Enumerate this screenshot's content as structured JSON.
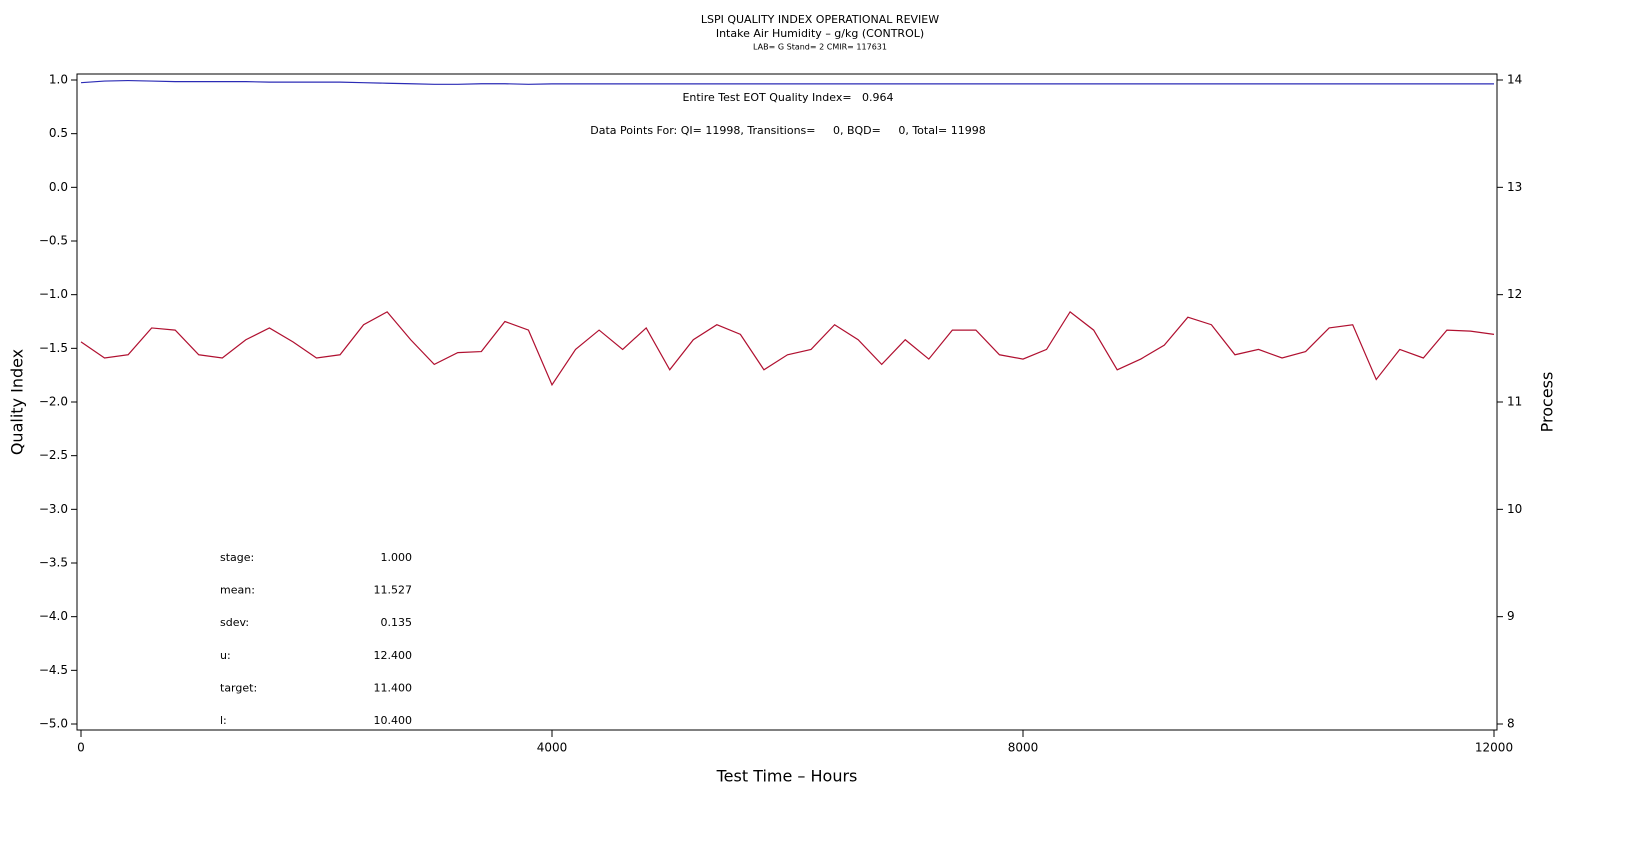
{
  "chart_data": {
    "type": "line",
    "title": "LSPI QUALITY INDEX OPERATIONAL REVIEW",
    "subtitle": "Intake Air Humidity – g/kg (CONTROL)",
    "caption": "LAB= G Stand= 2 CMIR= 117631",
    "xlabel": "Test Time – Hours",
    "ylabel": "Quality Index",
    "y2label": "Process",
    "annotations": [
      "Entire Test EOT Quality Index=   0.964",
      "Data Points For: QI= 11998, Transitions=     0, BQD=     0, Total= 11998"
    ],
    "stats": [
      {
        "label": "stage:",
        "value": "1.000"
      },
      {
        "label": "mean:",
        "value": "11.527"
      },
      {
        "label": "sdev:",
        "value": "0.135"
      },
      {
        "label": "u:",
        "value": "12.400"
      },
      {
        "label": "target:",
        "value": "11.400"
      },
      {
        "label": "l:",
        "value": "10.400"
      }
    ],
    "xlim": [
      0,
      12000
    ],
    "xticks": [
      0,
      4000,
      8000,
      12000
    ],
    "ylim": [
      -5,
      1
    ],
    "yticks": [
      {
        "value": -5,
        "label": "−5.0"
      },
      {
        "value": -4.5,
        "label": "−4.5"
      },
      {
        "value": -4,
        "label": "−4.0"
      },
      {
        "value": -3.5,
        "label": "−3.5"
      },
      {
        "value": -3,
        "label": "−3.0"
      },
      {
        "value": -2.5,
        "label": "−2.5"
      },
      {
        "value": -2,
        "label": "−2.0"
      },
      {
        "value": -1.5,
        "label": "−1.5"
      },
      {
        "value": -1,
        "label": "−1.0"
      },
      {
        "value": -0.5,
        "label": "−0.5"
      },
      {
        "value": 0,
        "label": "0.0"
      },
      0.5,
      {
        "value": 1,
        "label": "1.0"
      }
    ],
    "y2lim": [
      8,
      14
    ],
    "y2ticks": [
      8,
      9,
      10,
      11,
      12,
      13,
      14
    ],
    "x": [
      0,
      200,
      400,
      600,
      800,
      1000,
      1200,
      1400,
      1600,
      1800,
      2000,
      2200,
      2400,
      2600,
      2800,
      3000,
      3200,
      3400,
      3600,
      3800,
      4000,
      4200,
      4400,
      4600,
      4800,
      5000,
      5200,
      5400,
      5600,
      5800,
      6000,
      6200,
      6400,
      6600,
      6800,
      7000,
      7200,
      7400,
      7600,
      7800,
      8000,
      8200,
      8400,
      8600,
      8800,
      9000,
      9200,
      9400,
      9600,
      9800,
      10000,
      10200,
      10400,
      10600,
      10800,
      11000,
      11200,
      11400,
      11600,
      11800,
      12000
    ],
    "series": [
      {
        "color": "#2b2bb5",
        "axis": "y",
        "values": [
          0.975,
          0.99,
          0.995,
          0.99,
          0.985,
          0.985,
          0.985,
          0.985,
          0.98,
          0.98,
          0.98,
          0.98,
          0.975,
          0.97,
          0.965,
          0.96,
          0.96,
          0.965,
          0.965,
          0.96,
          0.964,
          0.964,
          0.964,
          0.964,
          0.964,
          0.964,
          0.964,
          0.964,
          0.964,
          0.964,
          0.964,
          0.964,
          0.964,
          0.964,
          0.964,
          0.964,
          0.964,
          0.964,
          0.964,
          0.964,
          0.964,
          0.964,
          0.964,
          0.964,
          0.964,
          0.964,
          0.964,
          0.964,
          0.964,
          0.964,
          0.964,
          0.964,
          0.964,
          0.964,
          0.964,
          0.964,
          0.964,
          0.964,
          0.964,
          0.964,
          0.964
        ]
      },
      {
        "color": "#b01030",
        "axis": "y2",
        "values": [
          11.56,
          11.41,
          11.44,
          11.69,
          11.67,
          11.44,
          11.41,
          11.58,
          11.69,
          11.56,
          11.41,
          11.44,
          11.72,
          11.84,
          11.58,
          11.35,
          11.46,
          11.47,
          11.75,
          11.67,
          11.16,
          11.49,
          11.67,
          11.49,
          11.69,
          11.3,
          11.58,
          11.72,
          11.63,
          11.3,
          11.44,
          11.49,
          11.72,
          11.58,
          11.35,
          11.58,
          11.4,
          11.67,
          11.67,
          11.44,
          11.4,
          11.49,
          11.84,
          11.67,
          11.3,
          11.4,
          11.53,
          11.79,
          11.72,
          11.44,
          11.49,
          11.41,
          11.47,
          11.69,
          11.72,
          11.21,
          11.49,
          11.41,
          11.67,
          11.66,
          11.63
        ]
      }
    ]
  }
}
